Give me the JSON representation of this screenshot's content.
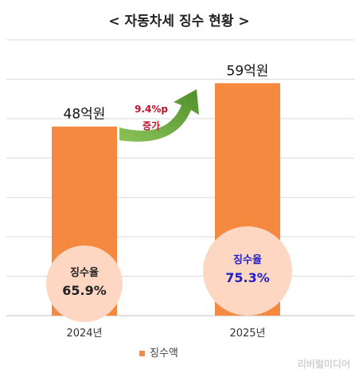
{
  "chart_data": {
    "type": "bar",
    "title": "< 자동차세 징수 현황 >",
    "categories": [
      "2024년",
      "2025년"
    ],
    "series": [
      {
        "name": "징수액",
        "values": [
          48,
          59
        ]
      }
    ],
    "data_labels": [
      "48억원",
      "59억원"
    ],
    "collection_rates": [
      {
        "label": "징수율",
        "value": "65.9%"
      },
      {
        "label": "징수율",
        "value": "75.3%"
      }
    ],
    "annotation": {
      "line1": "9.4%p",
      "line2": "증가"
    },
    "ylim": [
      0,
      70
    ],
    "grid": true,
    "legend_position": "bottom",
    "colors": {
      "bar": "#f4893f",
      "circle": "#fdd7c1",
      "arrow": "#6aa93b",
      "annotation_text": "#c0102a",
      "rate_2025_text": "#1f1fc8"
    }
  },
  "watermark": "리버럴미디어"
}
